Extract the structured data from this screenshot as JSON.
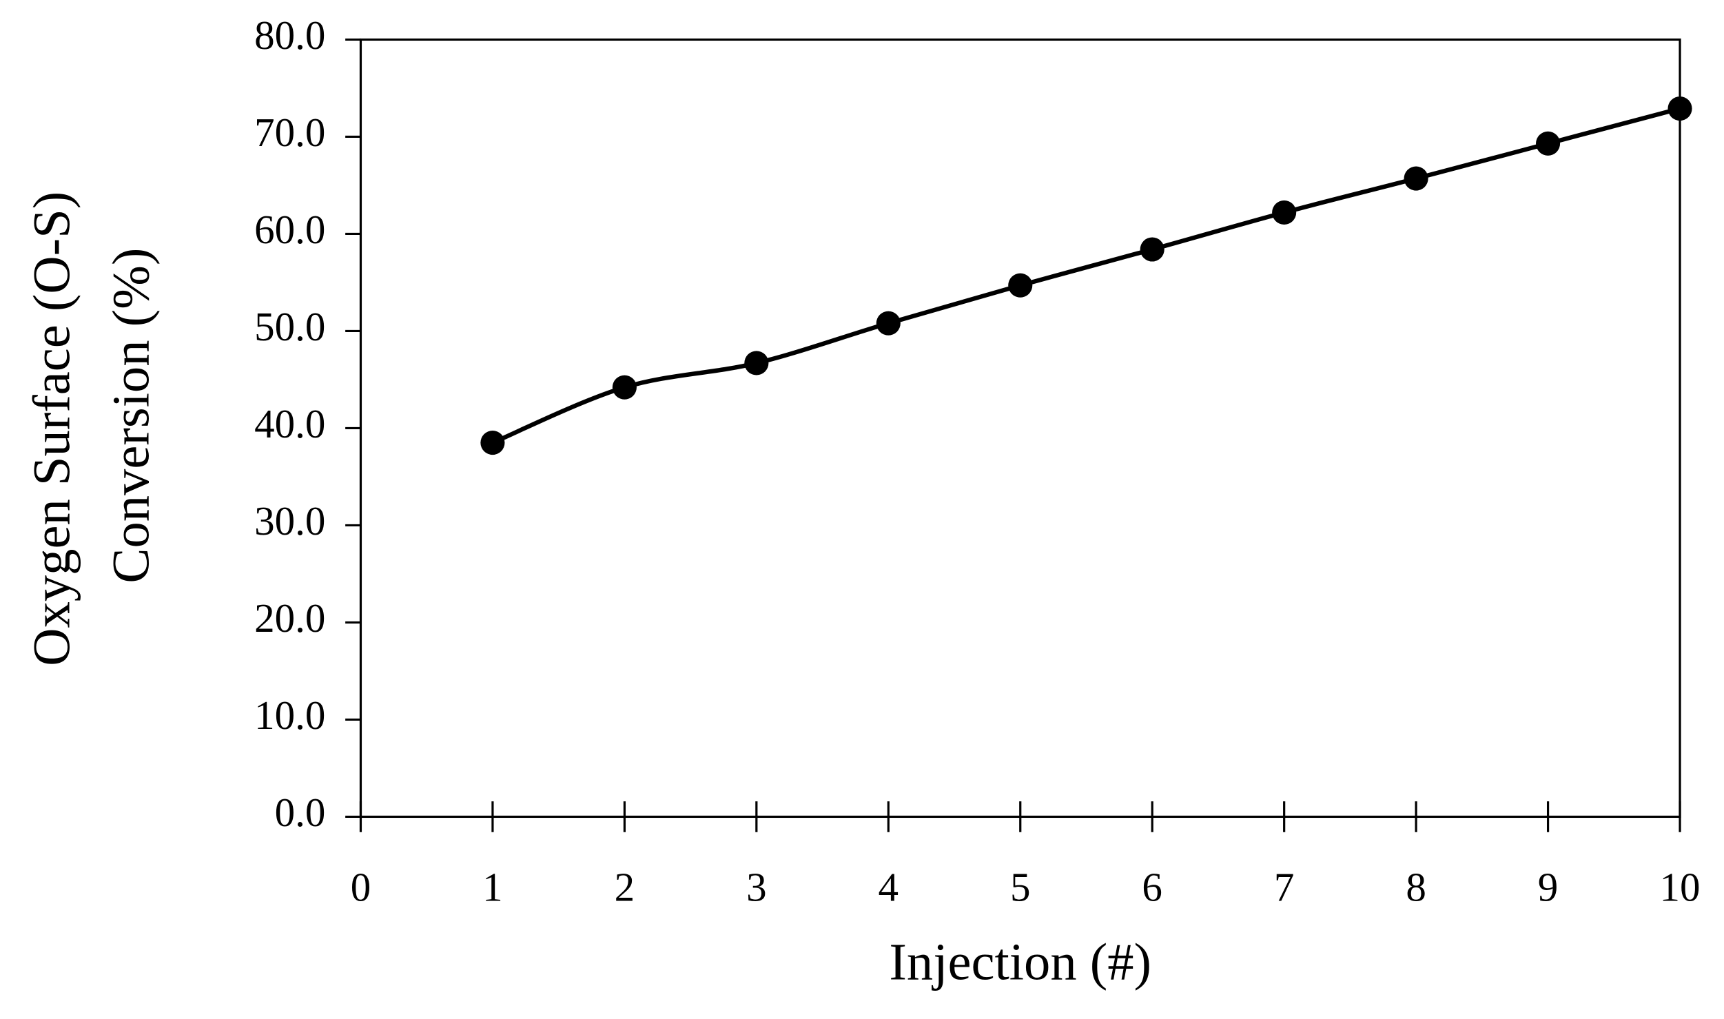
{
  "chart_data": {
    "type": "line",
    "xlabel": "Injection (#)",
    "ylabel": [
      "Oxygen Surface (O-S)",
      "Conversion (%)"
    ],
    "x": [
      1,
      2,
      3,
      4,
      5,
      6,
      7,
      8,
      9,
      10
    ],
    "series": [
      {
        "color": "#000000",
        "values": [
          38.5,
          44.2,
          46.7,
          50.8,
          54.7,
          58.4,
          62.2,
          65.7,
          69.3,
          72.9
        ]
      }
    ],
    "xlim": [
      0,
      10
    ],
    "xticks": [
      0,
      1,
      2,
      3,
      4,
      5,
      6,
      7,
      8,
      9,
      10
    ],
    "ylim": [
      0,
      80
    ],
    "yticks": [
      {
        "value": 0,
        "label": "0.0"
      },
      {
        "value": 10,
        "label": "10.0"
      },
      {
        "value": 20,
        "label": "20.0"
      },
      {
        "value": 30,
        "label": "30.0"
      },
      {
        "value": 40,
        "label": "40.0"
      },
      {
        "value": 50,
        "label": "50.0"
      },
      {
        "value": 60,
        "label": "60.0"
      },
      {
        "value": 70,
        "label": "70.0"
      },
      {
        "value": 80,
        "label": "80.0"
      }
    ],
    "grid": false,
    "smooth": true
  }
}
